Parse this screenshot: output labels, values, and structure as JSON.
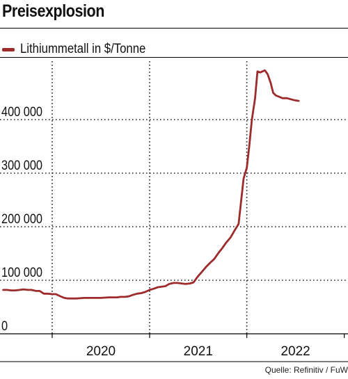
{
  "title": "Preisexplosion",
  "source": "Quelle: Refinitiv / FuW",
  "chart_data": {
    "type": "line",
    "legend": "top-left",
    "grid": true,
    "ylim": [
      0,
      500000
    ],
    "ytick_values": [
      0,
      100000,
      200000,
      300000,
      400000
    ],
    "ytick_labels": [
      "0",
      "100 000",
      "200 000",
      "300 000",
      "400 000"
    ],
    "x_year_labels": [
      "2020",
      "2021",
      "2022"
    ],
    "series": [
      {
        "name": "Lithiummetall in $/Tonne",
        "color": "#9e2b2b",
        "x": [
          "2019-07-01",
          "2019-07-15",
          "2019-08-01",
          "2019-08-15",
          "2019-09-01",
          "2019-09-15",
          "2019-10-01",
          "2019-10-15",
          "2019-11-01",
          "2019-11-15",
          "2019-12-01",
          "2019-12-15",
          "2020-01-01",
          "2020-01-15",
          "2020-02-01",
          "2020-02-15",
          "2020-03-01",
          "2020-04-01",
          "2020-05-01",
          "2020-06-01",
          "2020-07-01",
          "2020-08-01",
          "2020-09-01",
          "2020-09-15",
          "2020-10-01",
          "2020-10-15",
          "2020-11-01",
          "2020-11-15",
          "2020-12-01",
          "2020-12-15",
          "2021-01-01",
          "2021-01-15",
          "2021-02-01",
          "2021-02-15",
          "2021-03-01",
          "2021-03-15",
          "2021-04-01",
          "2021-04-15",
          "2021-05-01",
          "2021-05-15",
          "2021-06-01",
          "2021-06-15",
          "2021-07-01",
          "2021-07-15",
          "2021-08-01",
          "2021-08-15",
          "2021-09-01",
          "2021-09-15",
          "2021-10-01",
          "2021-10-15",
          "2021-11-01",
          "2021-11-15",
          "2021-12-01",
          "2021-12-10",
          "2021-12-20",
          "2022-01-01",
          "2022-01-10",
          "2022-01-20",
          "2022-02-01",
          "2022-02-10",
          "2022-02-20",
          "2022-03-01",
          "2022-03-10",
          "2022-03-20",
          "2022-04-01",
          "2022-04-10",
          "2022-04-20",
          "2022-05-01",
          "2022-05-15",
          "2022-06-01",
          "2022-06-15",
          "2022-07-01",
          "2022-07-15"
        ],
        "y": [
          82000,
          82000,
          81000,
          81000,
          82000,
          83000,
          82000,
          82000,
          80000,
          80000,
          75000,
          75000,
          74000,
          74000,
          70000,
          67000,
          66000,
          66000,
          67000,
          67000,
          67000,
          68000,
          68000,
          69000,
          69000,
          70000,
          73000,
          75000,
          76000,
          78000,
          82000,
          84000,
          87000,
          88000,
          89000,
          93000,
          95000,
          95000,
          94000,
          93000,
          94000,
          96000,
          107000,
          115000,
          125000,
          132000,
          140000,
          150000,
          160000,
          170000,
          180000,
          192000,
          205000,
          245000,
          290000,
          310000,
          350000,
          400000,
          440000,
          490000,
          488000,
          490000,
          492000,
          485000,
          468000,
          450000,
          445000,
          443000,
          440000,
          440000,
          438000,
          436000,
          435000
        ]
      }
    ]
  }
}
